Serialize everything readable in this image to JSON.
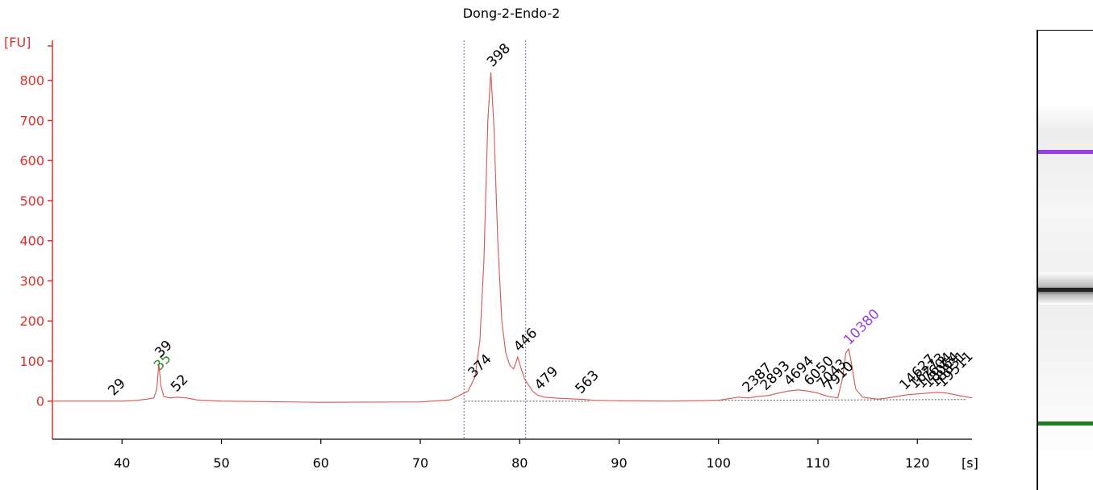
{
  "chart_data": {
    "type": "line",
    "title": "Dong-2-Endo-2",
    "ylabel": "[FU]",
    "xlabel": "[s]",
    "xlim": [
      33,
      125.5
    ],
    "ylim": [
      -95,
      900
    ],
    "x_ticks": [
      40,
      50,
      60,
      70,
      80,
      90,
      100,
      110,
      120
    ],
    "y_ticks": [
      0,
      100,
      200,
      300,
      400,
      500,
      600,
      700,
      800
    ],
    "grid": false,
    "colors": {
      "axis": "#e0302b",
      "trace": "#d9534f",
      "marker_low": "#2e8b2e",
      "marker_high": "#9b3fe0"
    },
    "region_lines_x": [
      74.4,
      80.6
    ],
    "series": [
      {
        "x": [
          33,
          40,
          41.5,
          42.5,
          43.2,
          43.5,
          43.7,
          43.9,
          44.2,
          44.8,
          45.5,
          46.5,
          47.5,
          50,
          60,
          70,
          73,
          74,
          74.8,
          75.5,
          76,
          76.4,
          76.8,
          77.1,
          77.4,
          77.8,
          78.2,
          78.6,
          79.0,
          79.4,
          79.8,
          80.1,
          80.5,
          80.9,
          81.3,
          81.8,
          82.5,
          83.5,
          85,
          86.5,
          87.5,
          90,
          95,
          100,
          102,
          103,
          104,
          105,
          106,
          107,
          108,
          109,
          110,
          111,
          112,
          112.5,
          112.8,
          113.1,
          113.4,
          113.8,
          114.5,
          116,
          117,
          118,
          119,
          120,
          121,
          122,
          123,
          124,
          125.5
        ],
        "y": [
          0,
          0,
          2,
          5,
          8,
          30,
          95,
          40,
          12,
          8,
          10,
          8,
          3,
          0,
          -3,
          -2,
          3,
          15,
          25,
          60,
          150,
          350,
          700,
          820,
          690,
          400,
          200,
          120,
          90,
          80,
          110,
          85,
          55,
          40,
          25,
          15,
          10,
          8,
          6,
          4,
          2,
          1,
          0,
          2,
          10,
          8,
          12,
          14,
          20,
          25,
          28,
          25,
          20,
          12,
          8,
          60,
          120,
          130,
          90,
          30,
          10,
          5,
          8,
          12,
          16,
          18,
          20,
          22,
          20,
          15,
          8
        ]
      }
    ],
    "peak_labels": [
      {
        "x": 39.0,
        "text": "29"
      },
      {
        "x": 43.6,
        "text": "35"
      },
      {
        "x": 43.7,
        "text": "39"
      },
      {
        "x": 45.3,
        "text": "52"
      },
      {
        "x": 75.2,
        "text": "374"
      },
      {
        "x": 77.1,
        "text": "398"
      },
      {
        "x": 79.8,
        "text": "446"
      },
      {
        "x": 81.9,
        "text": "479"
      },
      {
        "x": 86.0,
        "text": "563"
      },
      {
        "x": 102.8,
        "text": "2387"
      },
      {
        "x": 104.6,
        "text": "2893"
      },
      {
        "x": 107.0,
        "text": "4694"
      },
      {
        "x": 109.0,
        "text": "6050"
      },
      {
        "x": 110.3,
        "text": "7043"
      },
      {
        "x": 111.0,
        "text": "7910"
      },
      {
        "x": 113.0,
        "text": "10380"
      },
      {
        "x": 118.6,
        "text": "14627"
      },
      {
        "x": 119.6,
        "text": "16273"
      },
      {
        "x": 120.3,
        "text": "17604"
      },
      {
        "x": 121.0,
        "text": "18064"
      },
      {
        "x": 121.7,
        "text": "18831"
      },
      {
        "x": 122.4,
        "text": "19511"
      }
    ]
  },
  "gel": {
    "marker_high_color": "#9b3fe0",
    "marker_low_color": "#1e7d1e",
    "sample_band_color": "#222222"
  }
}
